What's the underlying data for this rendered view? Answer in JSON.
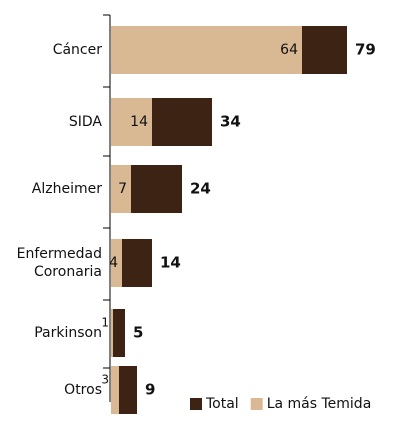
{
  "chart_data": {
    "type": "bar",
    "orientation": "horizontal",
    "overlap": true,
    "categories": [
      "Cáncer",
      "SIDA",
      "Alzheimer",
      "Enfermedad Coronaria",
      "Parkinson",
      "Otros"
    ],
    "series": [
      {
        "name": "Total",
        "color": "#3d2314",
        "values": [
          79,
          34,
          24,
          14,
          5,
          9
        ]
      },
      {
        "name": "La más Temida",
        "color": "#d9b994",
        "values": [
          64,
          14,
          7,
          4,
          1,
          3
        ]
      }
    ],
    "legend": "bottom-right"
  }
}
